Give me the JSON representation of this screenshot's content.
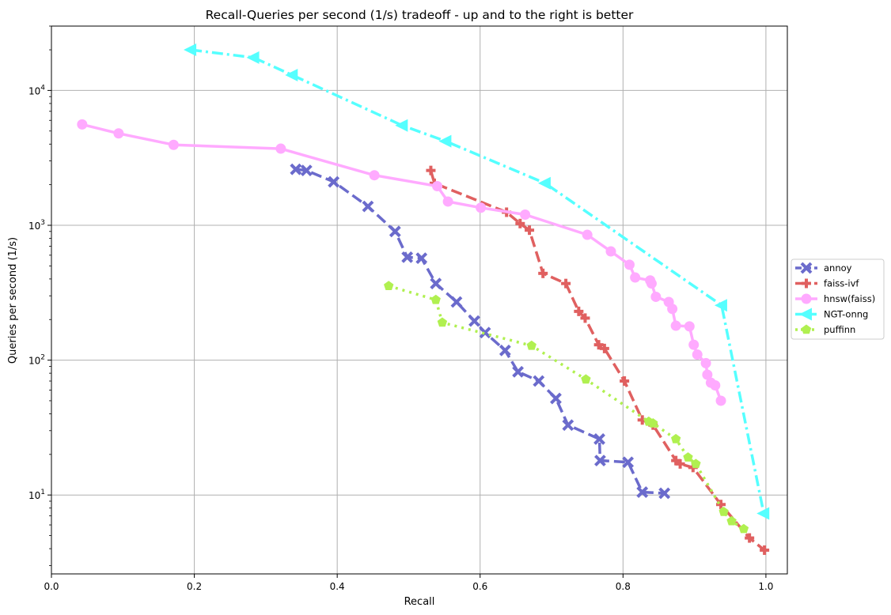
{
  "chart_data": {
    "type": "line",
    "title": "Recall-Queries per second (1/s) tradeoff - up and to the right is better",
    "xlabel": "Recall",
    "ylabel": "Queries per second (1/s)",
    "xlim": [
      0.0,
      1.03
    ],
    "ylim": [
      2.6,
      30000
    ],
    "yscale": "log",
    "grid": true,
    "legend_position": "center-right-outside",
    "x_ticks": [
      0.0,
      0.2,
      0.4,
      0.6,
      0.8,
      1.0
    ],
    "x_tick_labels": [
      "0.0",
      "0.2",
      "0.4",
      "0.6",
      "0.8",
      "1.0"
    ],
    "y_ticks": [
      10,
      100,
      1000,
      10000
    ],
    "y_tick_labels": [
      {
        "base": "10",
        "exp": "1"
      },
      {
        "base": "10",
        "exp": "2"
      },
      {
        "base": "10",
        "exp": "3"
      },
      {
        "base": "10",
        "exp": "4"
      }
    ],
    "series": [
      {
        "name": "annoy",
        "color": "#6b6bcc",
        "dash": "dashed",
        "marker": "x",
        "x": [
          0.342,
          0.357,
          0.395,
          0.443,
          0.481,
          0.498,
          0.518,
          0.538,
          0.567,
          0.592,
          0.607,
          0.635,
          0.653,
          0.682,
          0.706,
          0.723,
          0.767,
          0.768,
          0.807,
          0.827,
          0.858
        ],
        "y": [
          2600,
          2550,
          2100,
          1380,
          900,
          580,
          570,
          370,
          270,
          195,
          160,
          118,
          82,
          70,
          52,
          33,
          26,
          18,
          17.5,
          10.5,
          10.3
        ]
      },
      {
        "name": "faiss-ivf",
        "color": "#e06060",
        "dash": "dashed",
        "marker": "plus",
        "x": [
          0.531,
          0.536,
          0.637,
          0.656,
          0.669,
          0.688,
          0.72,
          0.738,
          0.747,
          0.766,
          0.774,
          0.802,
          0.827,
          0.842,
          0.874,
          0.88,
          0.898,
          0.937,
          0.977,
          0.998
        ],
        "y": [
          2550,
          2050,
          1250,
          1030,
          920,
          440,
          370,
          230,
          205,
          130,
          122,
          70,
          36,
          33,
          18,
          17,
          16,
          8.5,
          4.8,
          3.9
        ]
      },
      {
        "name": "hnsw(faiss)",
        "color": "#ffaaff",
        "dash": "solid",
        "marker": "circle",
        "x": [
          0.043,
          0.094,
          0.171,
          0.321,
          0.452,
          0.54,
          0.555,
          0.601,
          0.663,
          0.75,
          0.783,
          0.809,
          0.817,
          0.838,
          0.84,
          0.846,
          0.864,
          0.869,
          0.874,
          0.893,
          0.899,
          0.904,
          0.916,
          0.918,
          0.923,
          0.929,
          0.937
        ],
        "y": [
          5600,
          4800,
          3950,
          3700,
          2350,
          1950,
          1500,
          1350,
          1200,
          850,
          640,
          510,
          410,
          390,
          370,
          295,
          270,
          240,
          180,
          178,
          130,
          110,
          95,
          78,
          68,
          65,
          50
        ]
      },
      {
        "name": "NGT-onng",
        "color": "#55ffff",
        "dash": "dashdot",
        "marker": "triangle-left",
        "x": [
          0.195,
          0.283,
          0.337,
          0.491,
          0.552,
          0.691,
          0.938,
          0.997
        ],
        "y": [
          20000,
          17500,
          13000,
          5500,
          4200,
          2050,
          255,
          7.3
        ]
      },
      {
        "name": "puffinn",
        "color": "#b0f050",
        "dash": "dotted",
        "marker": "pentagon",
        "x": [
          0.472,
          0.538,
          0.547,
          0.672,
          0.748,
          0.836,
          0.842,
          0.874,
          0.891,
          0.902,
          0.941,
          0.952,
          0.969
        ],
        "y": [
          355,
          280,
          190,
          128,
          72,
          35,
          34,
          26,
          19,
          17,
          7.5,
          6.4,
          5.6
        ]
      }
    ]
  }
}
